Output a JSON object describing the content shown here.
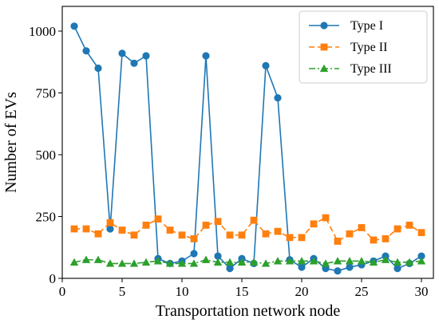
{
  "chart_data": {
    "type": "line",
    "title": "",
    "xlabel": "Transportation network node",
    "ylabel": "Number of EVs",
    "xlim": [
      0,
      31
    ],
    "ylim": [
      0,
      1100
    ],
    "x_ticks": [
      0,
      5,
      10,
      15,
      20,
      25,
      30
    ],
    "y_ticks": [
      0,
      250,
      500,
      750,
      1000
    ],
    "grid": false,
    "legend_position": "top-right",
    "x": [
      1,
      2,
      3,
      4,
      5,
      6,
      7,
      8,
      9,
      10,
      11,
      12,
      13,
      14,
      15,
      16,
      17,
      18,
      19,
      20,
      21,
      22,
      23,
      24,
      25,
      26,
      27,
      28,
      29,
      30
    ],
    "series": [
      {
        "name": "Type I",
        "color": "#1f77b4",
        "marker": "circle",
        "line_style": "solid",
        "values": [
          1020,
          920,
          850,
          200,
          910,
          870,
          900,
          80,
          60,
          70,
          100,
          900,
          90,
          40,
          80,
          60,
          860,
          730,
          75,
          45,
          80,
          40,
          30,
          45,
          55,
          70,
          90,
          40,
          60,
          90
        ]
      },
      {
        "name": "Type II",
        "color": "#ff7f0e",
        "marker": "square",
        "line_style": "dashed",
        "values": [
          200,
          200,
          180,
          225,
          195,
          175,
          215,
          240,
          195,
          175,
          160,
          215,
          230,
          175,
          175,
          235,
          180,
          190,
          165,
          165,
          220,
          245,
          150,
          180,
          205,
          155,
          160,
          200,
          215,
          185
        ]
      },
      {
        "name": "Type III",
        "color": "#2ca02c",
        "marker": "triangle",
        "line_style": "dashdot",
        "values": [
          65,
          75,
          75,
          60,
          60,
          60,
          65,
          70,
          60,
          60,
          60,
          75,
          65,
          65,
          65,
          65,
          60,
          70,
          70,
          70,
          70,
          60,
          70,
          70,
          70,
          65,
          75,
          65,
          65,
          70
        ]
      }
    ]
  }
}
